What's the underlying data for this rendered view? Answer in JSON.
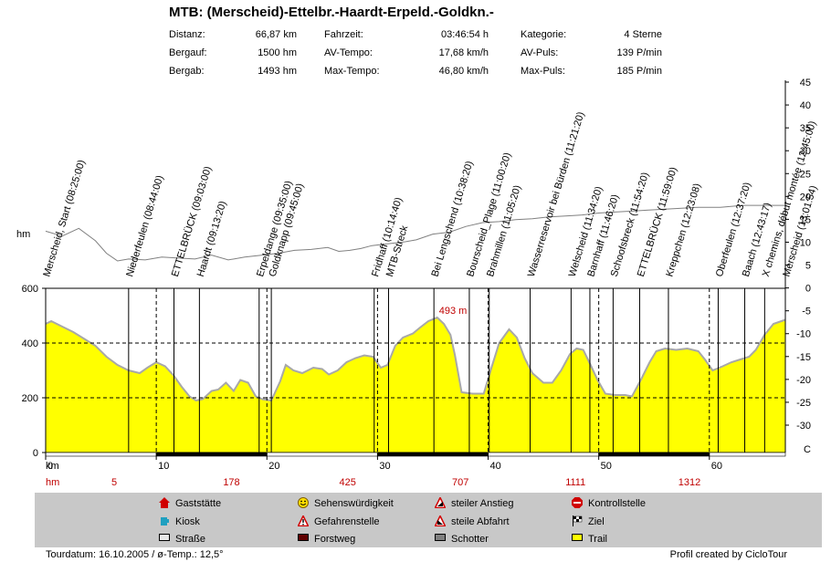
{
  "header": {
    "title": "MTB: (Merscheid)-Ettelbr.-Haardt-Erpeld.-Goldkn.-",
    "stats": [
      {
        "label": "Distanz:",
        "value": "66,87 km"
      },
      {
        "label": "Fahrzeit:",
        "value": "03:46:54 h"
      },
      {
        "label": "Kategorie:",
        "value": "4 Sterne"
      },
      {
        "label": "Bergauf:",
        "value": "1500 hm"
      },
      {
        "label": "AV-Tempo:",
        "value": "17,68 km/h"
      },
      {
        "label": "AV-Puls:",
        "value": "139 P/min"
      },
      {
        "label": "Bergab:",
        "value": "1493 hm"
      },
      {
        "label": "Max-Tempo:",
        "value": "46,80 km/h"
      },
      {
        "label": "Max-Puls:",
        "value": "185 P/min"
      }
    ]
  },
  "chart_data": {
    "type": "area",
    "ylabel": "hm",
    "xlabel": "km",
    "xlim": [
      0,
      66.87
    ],
    "ylim": [
      0,
      600
    ],
    "yticks": [
      0,
      200,
      400,
      600
    ],
    "xticks": [
      0,
      10,
      20,
      30,
      40,
      50,
      60
    ],
    "xtick_labels": [
      "0",
      "10",
      "20",
      "30",
      "40",
      "50",
      "60"
    ],
    "hm_row_label": "hm",
    "hm_cumulative": [
      {
        "km": 6.2,
        "label": "5"
      },
      {
        "km": 16.8,
        "label": "178"
      },
      {
        "km": 27.3,
        "label": "425"
      },
      {
        "km": 37.5,
        "label": "707"
      },
      {
        "km": 47.9,
        "label": "1111"
      },
      {
        "km": 58.2,
        "label": "1312"
      }
    ],
    "max_label": {
      "km": 34.9,
      "value": 493,
      "label": "493 m"
    },
    "temp_axis": {
      "unit": "C",
      "ticks": [
        "45",
        "40",
        "35",
        "30",
        "25",
        "20",
        "15",
        "10",
        "5",
        "0",
        "-5",
        "-10",
        "-15",
        "-20",
        "-25",
        "-30"
      ],
      "range": [
        -30,
        45
      ]
    },
    "profile": [
      [
        0.0,
        470
      ],
      [
        0.5,
        480
      ],
      [
        1.5,
        460
      ],
      [
        2.5,
        440
      ],
      [
        3.5,
        415
      ],
      [
        4.5,
        390
      ],
      [
        5.5,
        350
      ],
      [
        6.5,
        320
      ],
      [
        7.5,
        300
      ],
      [
        8.5,
        290
      ],
      [
        9.2,
        310
      ],
      [
        10.0,
        330
      ],
      [
        10.8,
        315
      ],
      [
        11.6,
        280
      ],
      [
        12.3,
        240
      ],
      [
        13.0,
        205
      ],
      [
        13.6,
        190
      ],
      [
        14.2,
        195
      ],
      [
        15.0,
        225
      ],
      [
        15.6,
        230
      ],
      [
        16.3,
        255
      ],
      [
        17.0,
        225
      ],
      [
        17.6,
        265
      ],
      [
        18.3,
        255
      ],
      [
        19.0,
        205
      ],
      [
        19.6,
        195
      ],
      [
        20.4,
        190
      ],
      [
        21.2,
        260
      ],
      [
        21.7,
        320
      ],
      [
        22.4,
        300
      ],
      [
        23.2,
        290
      ],
      [
        24.2,
        310
      ],
      [
        25.0,
        305
      ],
      [
        25.6,
        285
      ],
      [
        26.4,
        300
      ],
      [
        27.2,
        330
      ],
      [
        28.0,
        345
      ],
      [
        28.8,
        355
      ],
      [
        29.6,
        350
      ],
      [
        30.3,
        310
      ],
      [
        30.9,
        320
      ],
      [
        31.6,
        390
      ],
      [
        32.3,
        420
      ],
      [
        33.2,
        435
      ],
      [
        33.8,
        455
      ],
      [
        34.6,
        480
      ],
      [
        35.4,
        493
      ],
      [
        36.0,
        470
      ],
      [
        36.6,
        430
      ],
      [
        37.0,
        355
      ],
      [
        37.6,
        220
      ],
      [
        38.6,
        215
      ],
      [
        39.6,
        215
      ],
      [
        40.3,
        310
      ],
      [
        41.0,
        400
      ],
      [
        41.9,
        450
      ],
      [
        42.6,
        420
      ],
      [
        43.3,
        345
      ],
      [
        44.0,
        290
      ],
      [
        45.0,
        255
      ],
      [
        45.8,
        255
      ],
      [
        46.6,
        300
      ],
      [
        47.4,
        360
      ],
      [
        48.0,
        380
      ],
      [
        48.6,
        375
      ],
      [
        49.2,
        325
      ],
      [
        49.9,
        265
      ],
      [
        50.6,
        215
      ],
      [
        51.5,
        210
      ],
      [
        52.4,
        210
      ],
      [
        53.0,
        205
      ],
      [
        53.8,
        265
      ],
      [
        54.6,
        330
      ],
      [
        55.2,
        370
      ],
      [
        56.0,
        380
      ],
      [
        57.0,
        375
      ],
      [
        58.0,
        380
      ],
      [
        59.0,
        370
      ],
      [
        59.6,
        340
      ],
      [
        60.3,
        300
      ],
      [
        61.2,
        315
      ],
      [
        62.0,
        330
      ],
      [
        62.8,
        340
      ],
      [
        63.6,
        350
      ],
      [
        64.2,
        375
      ],
      [
        65.0,
        430
      ],
      [
        65.8,
        470
      ],
      [
        66.87,
        485
      ]
    ],
    "speed_trace": [
      [
        0.0,
        45
      ],
      [
        1.5,
        40
      ],
      [
        3.0,
        48
      ],
      [
        4.5,
        35
      ],
      [
        5.5,
        22
      ],
      [
        6.5,
        14
      ],
      [
        7.5,
        16
      ],
      [
        9.0,
        15
      ],
      [
        10.5,
        18
      ],
      [
        12.0,
        17
      ],
      [
        13.5,
        16
      ],
      [
        15.0,
        20
      ],
      [
        16.5,
        15
      ],
      [
        18.0,
        18
      ],
      [
        19.5,
        20
      ],
      [
        21.0,
        22
      ],
      [
        22.5,
        25
      ],
      [
        24.0,
        26
      ],
      [
        25.5,
        28
      ],
      [
        26.5,
        24
      ],
      [
        27.5,
        25
      ],
      [
        28.5,
        27
      ],
      [
        29.5,
        30
      ],
      [
        31.0,
        32
      ],
      [
        32.5,
        34
      ],
      [
        33.5,
        36
      ],
      [
        35.0,
        42
      ],
      [
        36.5,
        44
      ],
      [
        38.0,
        50
      ],
      [
        39.5,
        54
      ],
      [
        41.0,
        55
      ],
      [
        42.5,
        57
      ],
      [
        44.0,
        58
      ],
      [
        45.5,
        60
      ],
      [
        47.0,
        61
      ],
      [
        48.5,
        62
      ],
      [
        50.0,
        64
      ],
      [
        51.5,
        65
      ],
      [
        53.0,
        66
      ],
      [
        54.5,
        67
      ],
      [
        56.0,
        68
      ],
      [
        57.5,
        69
      ],
      [
        59.0,
        70
      ],
      [
        61.0,
        70
      ],
      [
        63.0,
        72
      ],
      [
        64.5,
        72
      ],
      [
        66.87,
        72
      ]
    ],
    "surface_segments": [
      {
        "from": 10.0,
        "to": 20.0,
        "type": "Forstweg"
      },
      {
        "from": 30.0,
        "to": 40.0,
        "type": "Forstweg"
      },
      {
        "from": 50.0,
        "to": 60.0,
        "type": "Forstweg"
      }
    ],
    "waypoints": [
      {
        "km": 0.0,
        "label": "Merscheid, Start (08:25:00)"
      },
      {
        "km": 7.5,
        "label": "Niederfeulen (08:44:00)"
      },
      {
        "km": 11.6,
        "label": "ETTELBRÜCK (09:03:00)"
      },
      {
        "km": 13.9,
        "label": "Haardt (09:13:20)"
      },
      {
        "km": 19.3,
        "label": "Erpeldange (09:35:00)"
      },
      {
        "km": 20.4,
        "label": "Goldknapp (09:45:00)"
      },
      {
        "km": 29.7,
        "label": "Fridhaff (10:14:40)"
      },
      {
        "km": 31.0,
        "label": "MTB-Streck"
      },
      {
        "km": 35.1,
        "label": "Bei Lengschend (10:38:20)"
      },
      {
        "km": 38.3,
        "label": "Bourscheid_Plage (11:00:20)"
      },
      {
        "km": 40.1,
        "label": "Brahmillen (11:05:20)"
      },
      {
        "km": 43.8,
        "label": "Wasserreservoir bei Bürden (11:21:20)"
      },
      {
        "km": 47.5,
        "label": "Welscheid (11:34:20)"
      },
      {
        "km": 49.2,
        "label": "Barnhaff (11:46:20)"
      },
      {
        "km": 51.3,
        "label": "Schoofsbreck (11:54:20)"
      },
      {
        "km": 53.7,
        "label": "ETTELBRÜCK (11:59:00)"
      },
      {
        "km": 56.3,
        "label": "Kreppchen (12:23:08)"
      },
      {
        "km": 60.8,
        "label": "Oberfeulen (12:37:20)"
      },
      {
        "km": 63.2,
        "label": "Baach (12:43:17)"
      },
      {
        "km": 65.0,
        "label": "X chemins, début montée (12:45:00)"
      },
      {
        "km": 66.87,
        "label": "Merscheid (13:01:54)"
      }
    ],
    "colors": {
      "fill": "#ffff00",
      "outline": "#a8a8a8",
      "trace": "#808080",
      "hm_text": "#c00000",
      "max_text": "#c00000"
    }
  },
  "legend": {
    "items": [
      {
        "label": "Gaststätte",
        "icon": "house-red-icon"
      },
      {
        "label": "Sehenswürdigkeit",
        "icon": "smiley-icon"
      },
      {
        "label": "steiler Anstieg",
        "icon": "steep-climb-icon"
      },
      {
        "label": "Kontrollstelle",
        "icon": "stop-sign-icon"
      },
      {
        "label": "Kiosk",
        "icon": "cup-icon"
      },
      {
        "label": "Gefahrenstelle",
        "icon": "warning-icon"
      },
      {
        "label": "steile Abfahrt",
        "icon": "steep-descent-icon"
      },
      {
        "label": "Ziel",
        "icon": "checkered-flag-icon"
      },
      {
        "label": "Straße",
        "icon": "swatch-road-icon",
        "color": "#e0e0e0"
      },
      {
        "label": "Forstweg",
        "icon": "swatch-forest-icon",
        "color": "#600000"
      },
      {
        "label": "Schotter",
        "icon": "swatch-gravel-icon",
        "color": "#808080"
      },
      {
        "label": "Trail",
        "icon": "swatch-trail-icon",
        "color": "#ffff00"
      }
    ]
  },
  "footer": {
    "tour_date": "Tourdatum: 16.10.2005  /  ø-Temp.: 12,5°",
    "credit": "Profil created by CicloTour"
  }
}
